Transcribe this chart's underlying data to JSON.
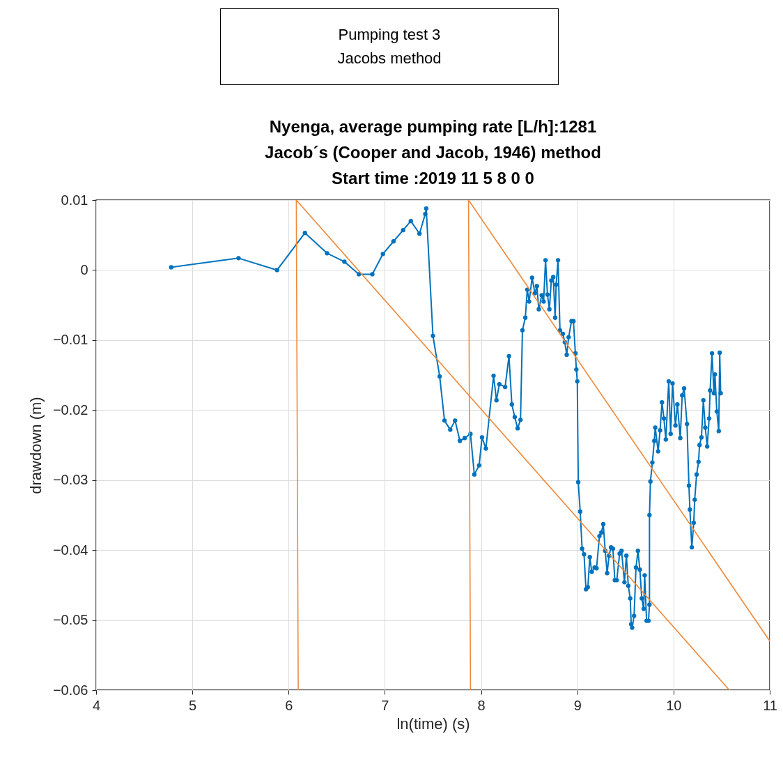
{
  "chart_data": {
    "type": "line",
    "title": "Nyenga, average pumping rate [L/h]:1281\nJacob´s (Cooper and Jacob, 1946) method\nStart time :2019 11 5 8 0 0",
    "annotations": [
      "Pumping test 3\nJacobs method"
    ],
    "xlabel": "ln(time) (s)",
    "ylabel": "drawdown (m)",
    "xlim": [
      4,
      11
    ],
    "xticks": [
      4,
      5,
      6,
      7,
      8,
      9,
      10,
      11
    ],
    "ylim": [
      -0.06,
      0.01
    ],
    "yticks": [
      -0.06,
      -0.05,
      -0.04,
      -0.03,
      -0.02,
      -0.01,
      0,
      0.01
    ],
    "grid": true,
    "series": [
      {
        "color": "#0072bd",
        "marker": "circle",
        "x": [
          4.78,
          5.48,
          5.88,
          6.17,
          6.4,
          6.58,
          6.73,
          6.87,
          6.98,
          7.09,
          7.19,
          7.27,
          7.36,
          7.42,
          7.43,
          7.5,
          7.57,
          7.62,
          7.68,
          7.73,
          7.78,
          7.83,
          7.89,
          7.93,
          7.98,
          8.01,
          8.05,
          8.13,
          8.16,
          8.19,
          8.25,
          8.29,
          8.32,
          8.35,
          8.38,
          8.41,
          8.43,
          8.46,
          8.48,
          8.5,
          8.53,
          8.56,
          8.58,
          8.6,
          8.63,
          8.65,
          8.67,
          8.69,
          8.71,
          8.73,
          8.75,
          8.77,
          8.78,
          8.8,
          8.82,
          8.85,
          8.87,
          8.89,
          8.91,
          8.94,
          8.96,
          8.98,
          8.99,
          9.0,
          9.01,
          9.03,
          9.05,
          9.07,
          9.09,
          9.11,
          9.13,
          9.15,
          9.18,
          9.2,
          9.23,
          9.25,
          9.27,
          9.29,
          9.31,
          9.33,
          9.35,
          9.37,
          9.39,
          9.41,
          9.44,
          9.46,
          9.49,
          9.51,
          9.53,
          9.55,
          9.56,
          9.57,
          9.59,
          9.61,
          9.63,
          9.65,
          9.67,
          9.69,
          9.7,
          9.72,
          9.74,
          9.75,
          9.75,
          9.76,
          9.78,
          9.8,
          9.81,
          9.84,
          9.86,
          9.88,
          9.9,
          9.92,
          9.95,
          9.97,
          9.99,
          10.02,
          10.04,
          10.07,
          10.09,
          10.11,
          10.14,
          10.16,
          10.17,
          10.19,
          10.21,
          10.22,
          10.24,
          10.26,
          10.27,
          10.29,
          10.31,
          10.33,
          10.35,
          10.37,
          10.38,
          10.4,
          10.42,
          10.43,
          10.45,
          10.47,
          10.48,
          10.49
        ],
        "values": [
          0.0004,
          0.0017,
          0.0,
          0.0053,
          0.0024,
          0.0012,
          -0.0006,
          -0.0006,
          0.0023,
          0.0041,
          0.0057,
          0.007,
          0.0052,
          0.008,
          0.0088,
          -0.0094,
          -0.0152,
          -0.0215,
          -0.0228,
          -0.0215,
          -0.0244,
          -0.024,
          -0.0234,
          -0.0292,
          -0.0279,
          -0.0239,
          -0.0255,
          -0.0151,
          -0.0186,
          -0.0163,
          -0.0167,
          -0.0123,
          -0.0192,
          -0.021,
          -0.0226,
          -0.0214,
          -0.0086,
          -0.0068,
          -0.0028,
          -0.0045,
          -0.0011,
          -0.0033,
          -0.0023,
          -0.0056,
          -0.0036,
          -0.0045,
          0.0014,
          -0.0035,
          -0.0056,
          -0.0015,
          -0.001,
          -0.0068,
          -0.0021,
          0.0014,
          -0.0086,
          -0.0091,
          -0.0103,
          -0.0121,
          -0.0096,
          -0.0073,
          -0.0073,
          -0.0119,
          -0.0142,
          -0.0159,
          -0.0303,
          -0.0345,
          -0.0398,
          -0.0406,
          -0.0456,
          -0.0453,
          -0.041,
          -0.0431,
          -0.0425,
          -0.0426,
          -0.038,
          -0.0375,
          -0.0363,
          -0.0401,
          -0.0433,
          -0.0408,
          -0.0396,
          -0.0398,
          -0.0443,
          -0.0443,
          -0.0405,
          -0.0401,
          -0.0446,
          -0.0408,
          -0.0451,
          -0.0469,
          -0.0506,
          -0.0511,
          -0.0494,
          -0.0425,
          -0.0401,
          -0.0428,
          -0.0469,
          -0.0484,
          -0.0436,
          -0.0501,
          -0.0501,
          -0.0478,
          -0.035,
          -0.0302,
          -0.0275,
          -0.0244,
          -0.0225,
          -0.0259,
          -0.0229,
          -0.0189,
          -0.0212,
          -0.0242,
          -0.0159,
          -0.0234,
          -0.0162,
          -0.0222,
          -0.0192,
          -0.024,
          -0.0179,
          -0.0169,
          -0.022,
          -0.0308,
          -0.0342,
          -0.0396,
          -0.0361,
          -0.0328,
          -0.0292,
          -0.0274,
          -0.025,
          -0.0239,
          -0.0186,
          -0.0225,
          -0.0252,
          -0.0212,
          -0.0172,
          -0.0119,
          -0.0176,
          -0.0149,
          -0.0202,
          -0.023,
          -0.0118,
          -0.0176
        ]
      },
      {
        "color": "#ee8a3c",
        "marker": "none",
        "x": [
          6.1,
          6.08,
          10.58
        ],
        "values": [
          -0.06,
          0.01,
          -0.06
        ]
      },
      {
        "color": "#ee8a3c",
        "marker": "none",
        "x": [
          7.89,
          7.87,
          11
        ],
        "values": [
          -0.06,
          0.01,
          -0.053
        ]
      }
    ]
  }
}
